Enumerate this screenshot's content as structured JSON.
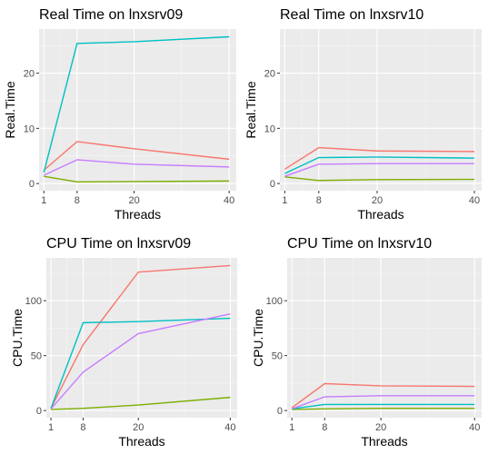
{
  "chart_data": [
    {
      "type": "line",
      "title": "Real Time on lnxsrv09",
      "xlabel": "Threads",
      "ylabel": "Real.Time",
      "x": [
        1,
        8,
        20,
        40
      ],
      "xticks": [
        1,
        8,
        20,
        40
      ],
      "yticks": [
        0,
        10,
        20
      ],
      "xlim": [
        0,
        41.5
      ],
      "ylim": [
        -1.3,
        28
      ],
      "grid": true,
      "series": [
        {
          "color": "#F8766D",
          "values": [
            2.4,
            7.6,
            6.3,
            4.4
          ]
        },
        {
          "color": "#7CAE00",
          "values": [
            1.3,
            0.3,
            0.35,
            0.45
          ]
        },
        {
          "color": "#00BFC4",
          "values": [
            2.0,
            25.4,
            25.7,
            26.6
          ]
        },
        {
          "color": "#C77CFF",
          "values": [
            1.5,
            4.3,
            3.5,
            3.0
          ]
        }
      ]
    },
    {
      "type": "line",
      "title": "Real Time on lnxsrv10",
      "xlabel": "Threads",
      "ylabel": "Real.Time",
      "x": [
        1,
        8,
        20,
        40
      ],
      "xticks": [
        1,
        8,
        20,
        40
      ],
      "yticks": [
        0,
        10,
        20
      ],
      "xlim": [
        0,
        41.5
      ],
      "ylim": [
        -1.3,
        28
      ],
      "grid": true,
      "series": [
        {
          "color": "#F8766D",
          "values": [
            2.6,
            6.5,
            5.9,
            5.8
          ]
        },
        {
          "color": "#7CAE00",
          "values": [
            1.2,
            0.55,
            0.7,
            0.75
          ]
        },
        {
          "color": "#00BFC4",
          "values": [
            1.8,
            4.7,
            4.8,
            4.6
          ]
        },
        {
          "color": "#C77CFF",
          "values": [
            1.3,
            3.5,
            3.6,
            3.6
          ]
        }
      ]
    },
    {
      "type": "line",
      "title": "CPU Time on lnxsrv09",
      "xlabel": "Threads",
      "ylabel": "CPU.Time",
      "x": [
        1,
        8,
        20,
        40
      ],
      "xticks": [
        1,
        8,
        20,
        40
      ],
      "yticks": [
        0,
        50,
        100
      ],
      "xlim": [
        0,
        41.5
      ],
      "ylim": [
        -6.5,
        139
      ],
      "grid": true,
      "series": [
        {
          "color": "#F8766D",
          "values": [
            2.0,
            60.0,
            126.0,
            132.0
          ]
        },
        {
          "color": "#7CAE00",
          "values": [
            1.0,
            2.0,
            5.0,
            12.0
          ]
        },
        {
          "color": "#00BFC4",
          "values": [
            2.0,
            80.0,
            81.0,
            84.0
          ]
        },
        {
          "color": "#C77CFF",
          "values": [
            1.5,
            35.0,
            70.0,
            88.0
          ]
        }
      ]
    },
    {
      "type": "line",
      "title": "CPU Time on lnxsrv10",
      "xlabel": "Threads",
      "ylabel": "CPU.Time",
      "x": [
        1,
        8,
        20,
        40
      ],
      "xticks": [
        1,
        8,
        20,
        40
      ],
      "yticks": [
        0,
        50,
        100
      ],
      "xlim": [
        0,
        41.5
      ],
      "ylim": [
        -6.5,
        139
      ],
      "grid": true,
      "series": [
        {
          "color": "#F8766D",
          "values": [
            2.5,
            24.5,
            22.5,
            22.0
          ]
        },
        {
          "color": "#7CAE00",
          "values": [
            1.0,
            1.5,
            2.0,
            2.0
          ]
        },
        {
          "color": "#00BFC4",
          "values": [
            1.5,
            5.5,
            5.5,
            5.5
          ]
        },
        {
          "color": "#C77CFF",
          "values": [
            1.5,
            12.5,
            13.5,
            13.5
          ]
        }
      ]
    }
  ]
}
